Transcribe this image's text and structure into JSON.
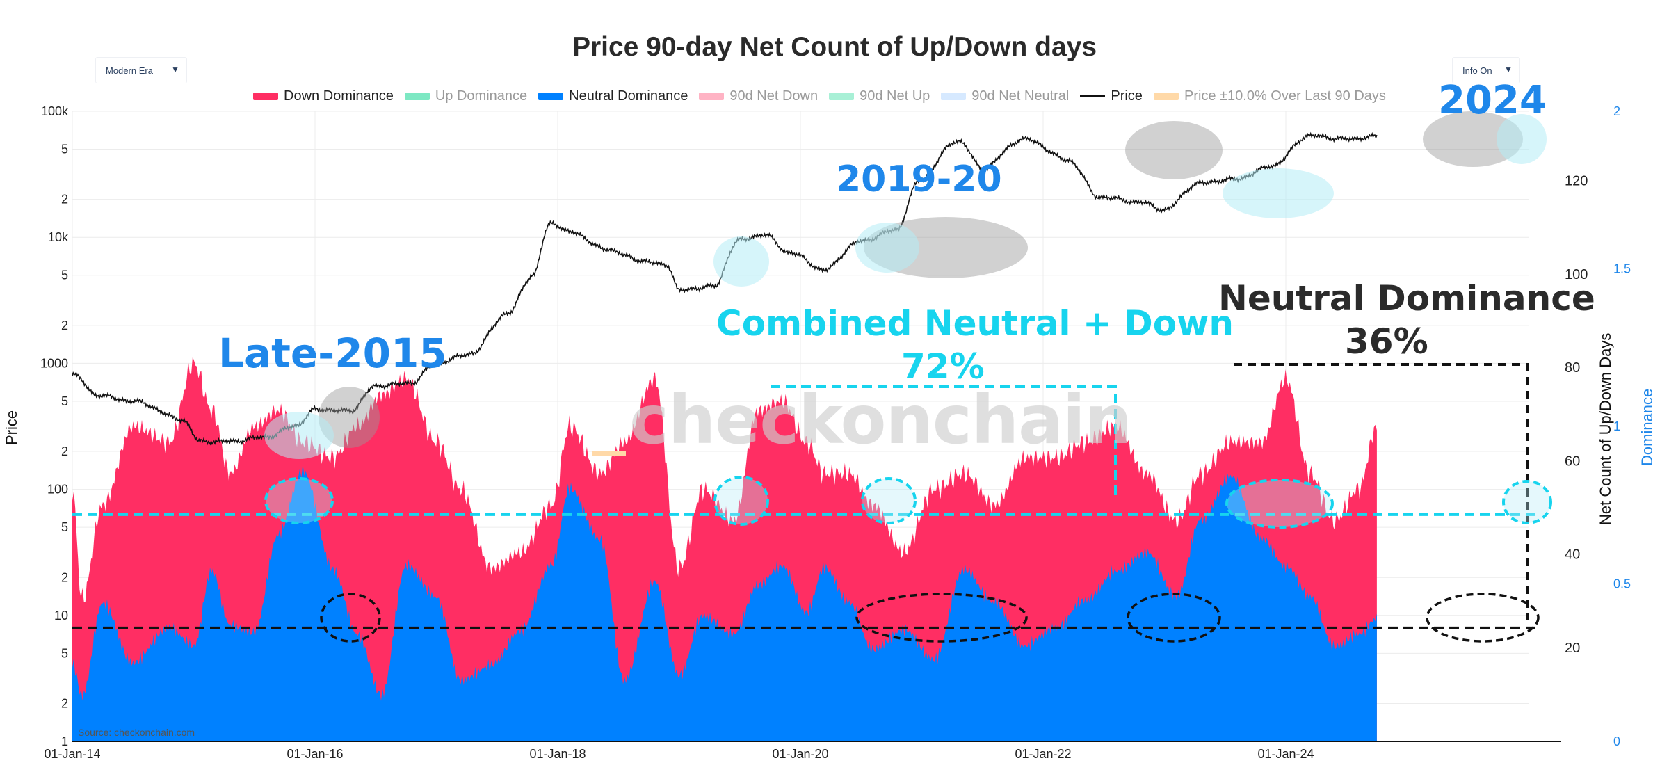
{
  "title": "Price 90-day Net Count of Up/Down days",
  "controls": {
    "era_dropdown": "Modern Era",
    "info_dropdown": "Info On",
    "caret": "▼"
  },
  "colors": {
    "down": "#ff2e63",
    "up": "#5ee0b0",
    "neutral": "#0081ff",
    "net_down": "#ffb3c4",
    "net_up": "#a8f0d6",
    "net_neutral": "#d6e9ff",
    "price": "#111111",
    "band": "#ffd9a8",
    "annotation_blue": "#1f87ea",
    "annotation_cyan": "#17d4ee",
    "annotation_dark": "#2b2b2b"
  },
  "legend": [
    {
      "label": "Down Dominance",
      "color": "#ff2e63",
      "kind": "swatch",
      "active": true
    },
    {
      "label": "Up Dominance",
      "color": "#7de8c3",
      "kind": "swatch",
      "active": false
    },
    {
      "label": "Neutral Dominance",
      "color": "#0081ff",
      "kind": "swatch",
      "active": true
    },
    {
      "label": "90d Net Down",
      "color": "#ffb3c4",
      "kind": "swatch",
      "active": false
    },
    {
      "label": "90d Net Up",
      "color": "#a8f0d6",
      "kind": "swatch",
      "active": false
    },
    {
      "label": "90d Net Neutral",
      "color": "#d6e9ff",
      "kind": "swatch",
      "active": false
    },
    {
      "label": "Price",
      "color": "#111111",
      "kind": "line",
      "active": true
    },
    {
      "label": "Price ±10.0% Over Last 90 Days",
      "color": "#ffd9a8",
      "kind": "swatch",
      "active": false
    }
  ],
  "axes": {
    "y_left_title": "Price",
    "y_right1_title": "Net Count of Up/Down Days",
    "y_right2_title": "Dominance",
    "y_left_ticks": [
      "1",
      "2",
      "5",
      "10",
      "2",
      "5",
      "100",
      "2",
      "5",
      "1000",
      "2",
      "5",
      "10k",
      "2",
      "5",
      "100k"
    ],
    "y_left_values": [
      1,
      2,
      5,
      10,
      20,
      50,
      100,
      200,
      500,
      1000,
      2000,
      5000,
      10000,
      20000,
      50000,
      100000
    ],
    "y_right1_ticks": [
      "20",
      "40",
      "60",
      "80",
      "100",
      "120"
    ],
    "y_right2_ticks": [
      "0",
      "0.5",
      "1",
      "1.5",
      "2"
    ],
    "x_ticks": [
      "01-Jan-14",
      "01-Jan-16",
      "01-Jan-18",
      "01-Jan-20",
      "01-Jan-22",
      "01-Jan-24"
    ],
    "x_range": [
      2014.0,
      2026.0
    ],
    "price_range": [
      1,
      100000
    ],
    "net_count_range": [
      0,
      135
    ],
    "dominance_range": [
      0,
      2
    ]
  },
  "annotations": {
    "late_2015": "Late-2015",
    "y2019_20": "2019-20",
    "y2024": "2024",
    "combined_line1": "Combined Neutral + Down",
    "combined_line2": "72%",
    "neutral_line1": "Neutral Dominance",
    "neutral_line2": "36%"
  },
  "watermark": "checkonchain",
  "source": "Source: checkonchain.com",
  "chart_data": {
    "type": "area",
    "title": "Price 90-day Net Count of Up/Down days",
    "xlabel": "",
    "ylabel": "Price",
    "reference_levels": {
      "combined_neutral_down": 0.72,
      "neutral_dominance": 0.36
    },
    "price_series": {
      "name": "Price",
      "x": [
        2014.0,
        2014.2,
        2014.5,
        2014.9,
        2015.05,
        2015.3,
        2015.6,
        2015.85,
        2016.0,
        2016.3,
        2016.5,
        2016.8,
        2017.0,
        2017.3,
        2017.6,
        2017.8,
        2017.95,
        2018.1,
        2018.4,
        2018.7,
        2018.9,
        2019.0,
        2019.3,
        2019.5,
        2019.7,
        2019.9,
        2020.2,
        2020.5,
        2020.8,
        2021.0,
        2021.3,
        2021.5,
        2021.85,
        2022.2,
        2022.45,
        2022.8,
        2023.0,
        2023.3,
        2023.6,
        2023.9,
        2024.2,
        2024.5,
        2024.75
      ],
      "y": [
        820,
        560,
        500,
        360,
        240,
        240,
        260,
        320,
        430,
        420,
        660,
        700,
        1000,
        1200,
        2500,
        5000,
        13000,
        11000,
        8000,
        6500,
        6000,
        3800,
        4100,
        9500,
        10500,
        7600,
        5500,
        9300,
        11500,
        29000,
        58000,
        35000,
        60000,
        41000,
        21000,
        19000,
        16500,
        27000,
        29000,
        37000,
        64000,
        60000,
        63000
      ]
    },
    "dominance_series": [
      {
        "name": "Down Dominance",
        "x": [
          2014.0,
          2014.08,
          2014.25,
          2014.5,
          2014.8,
          2015.0,
          2015.15,
          2015.3,
          2015.5,
          2015.7,
          2015.9,
          2016.15,
          2016.35,
          2016.55,
          2016.75,
          2017.0,
          2017.2,
          2017.45,
          2017.7,
          2017.95,
          2018.1,
          2018.35,
          2018.55,
          2018.8,
          2019.0,
          2019.2,
          2019.45,
          2019.65,
          2019.85,
          2020.05,
          2020.2,
          2020.4,
          2020.6,
          2020.85,
          2021.1,
          2021.35,
          2021.6,
          2021.85,
          2022.1,
          2022.35,
          2022.6,
          2022.85,
          2023.1,
          2023.3,
          2023.55,
          2023.8,
          2024.0,
          2024.2,
          2024.4,
          2024.6,
          2024.75
        ],
        "y": [
          0.8,
          0.45,
          0.75,
          1.0,
          0.95,
          1.2,
          1.05,
          0.85,
          1.0,
          1.05,
          0.95,
          0.9,
          1.0,
          1.1,
          1.15,
          0.95,
          0.8,
          0.55,
          0.6,
          0.75,
          1.0,
          0.85,
          0.95,
          1.15,
          0.55,
          0.8,
          0.7,
          1.05,
          1.08,
          0.95,
          0.85,
          0.85,
          0.75,
          0.6,
          0.8,
          0.85,
          0.75,
          0.9,
          0.9,
          0.95,
          1.0,
          0.85,
          0.7,
          0.85,
          0.95,
          0.95,
          1.15,
          0.85,
          0.7,
          0.8,
          1.0
        ]
      },
      {
        "name": "Neutral Dominance",
        "x": [
          2014.0,
          2014.08,
          2014.25,
          2014.5,
          2014.8,
          2015.0,
          2015.15,
          2015.3,
          2015.5,
          2015.7,
          2015.9,
          2016.15,
          2016.35,
          2016.55,
          2016.75,
          2017.0,
          2017.2,
          2017.45,
          2017.7,
          2017.95,
          2018.1,
          2018.35,
          2018.55,
          2018.8,
          2019.0,
          2019.2,
          2019.45,
          2019.65,
          2019.85,
          2020.05,
          2020.2,
          2020.4,
          2020.6,
          2020.85,
          2021.1,
          2021.35,
          2021.6,
          2021.85,
          2022.1,
          2022.35,
          2022.6,
          2022.85,
          2023.1,
          2023.3,
          2023.55,
          2023.8,
          2024.0,
          2024.2,
          2024.4,
          2024.6,
          2024.75
        ],
        "y": [
          0.25,
          0.15,
          0.45,
          0.25,
          0.35,
          0.3,
          0.55,
          0.38,
          0.35,
          0.65,
          0.85,
          0.55,
          0.35,
          0.15,
          0.55,
          0.45,
          0.2,
          0.25,
          0.35,
          0.55,
          0.8,
          0.65,
          0.2,
          0.5,
          0.2,
          0.4,
          0.35,
          0.5,
          0.55,
          0.4,
          0.55,
          0.45,
          0.3,
          0.35,
          0.25,
          0.55,
          0.45,
          0.3,
          0.35,
          0.45,
          0.55,
          0.6,
          0.45,
          0.7,
          0.85,
          0.65,
          0.55,
          0.45,
          0.3,
          0.35,
          0.4
        ]
      }
    ]
  }
}
